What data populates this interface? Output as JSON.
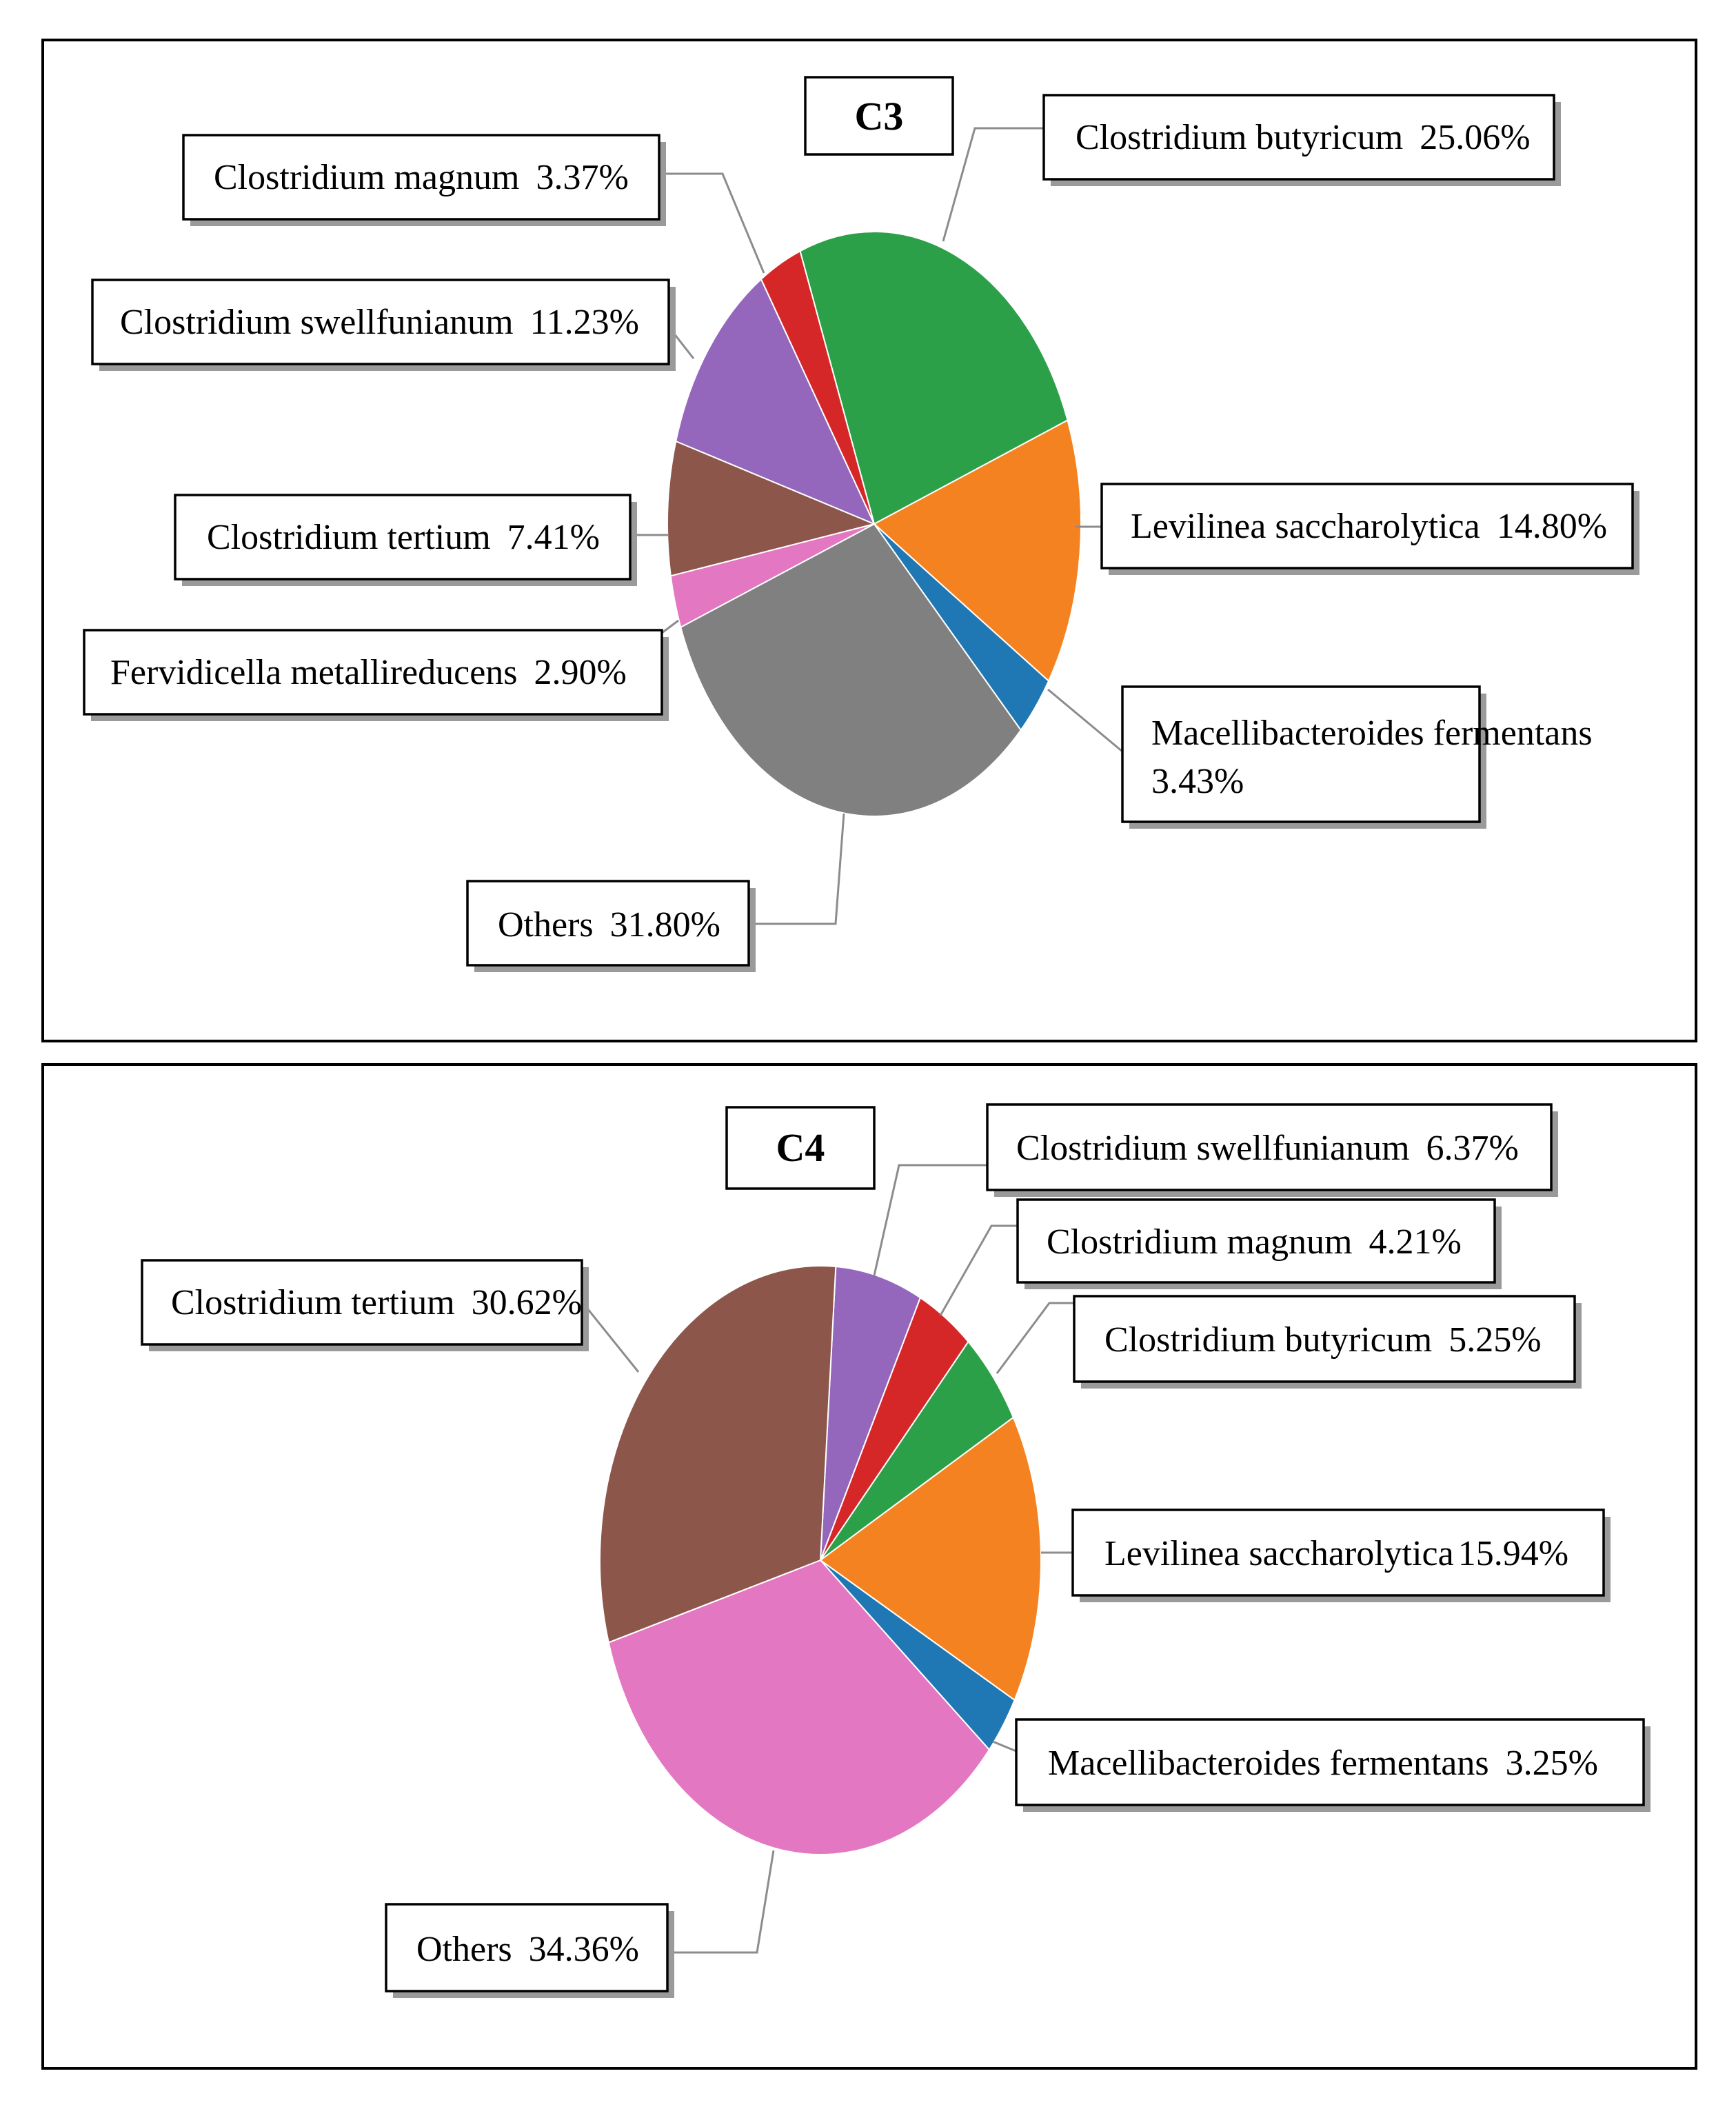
{
  "chart_data": [
    {
      "type": "pie",
      "title": "C3",
      "start_angle_deg": -111,
      "slices": [
        {
          "label": "Clostridium butyricum",
          "value": 25.06,
          "display": "25.06%",
          "color": "#2ca048"
        },
        {
          "label": "Levilinea saccharolytica",
          "value": 14.8,
          "display": "14.80%",
          "color": "#f58220"
        },
        {
          "label": "Macellibacteroides fermentans",
          "value": 3.43,
          "display": "3.43%",
          "color": "#1f77b4"
        },
        {
          "label": "Others",
          "value": 31.8,
          "display": "31.80%",
          "color": "#808080"
        },
        {
          "label": "Fervidicella metallireducens",
          "value": 2.9,
          "display": "2.90%",
          "color": "#e377c2"
        },
        {
          "label": "Clostridium tertium",
          "value": 7.41,
          "display": "7.41%",
          "color": "#8c564b"
        },
        {
          "label": "Clostridium swellfunianum",
          "value": 11.23,
          "display": "11.23%",
          "color": "#9467bd"
        },
        {
          "label": "Clostridium magnum",
          "value": 3.37,
          "display": "3.37%",
          "color": "#d62728"
        }
      ]
    },
    {
      "type": "pie",
      "title": "C4",
      "start_angle_deg": -86,
      "slices": [
        {
          "label": "Clostridium swellfunianum",
          "value": 6.37,
          "display": "6.37%",
          "color": "#9467bd"
        },
        {
          "label": "Clostridium magnum",
          "value": 4.21,
          "display": "4.21%",
          "color": "#d62728"
        },
        {
          "label": "Clostridium butyricum",
          "value": 5.25,
          "display": "5.25%",
          "color": "#2ca048"
        },
        {
          "label": "Levilinea saccharolytica",
          "value": 15.94,
          "display": "15.94%",
          "color": "#f58220"
        },
        {
          "label": "Macellibacteroides fermentans",
          "value": 3.25,
          "display": "3.25%",
          "color": "#1f77b4"
        },
        {
          "label": "Others",
          "value": 34.36,
          "display": "34.36%",
          "color": "#e377c2"
        },
        {
          "label": "Clostridium tertium",
          "value": 30.62,
          "display": "30.62%",
          "color": "#8c564b"
        }
      ]
    }
  ]
}
